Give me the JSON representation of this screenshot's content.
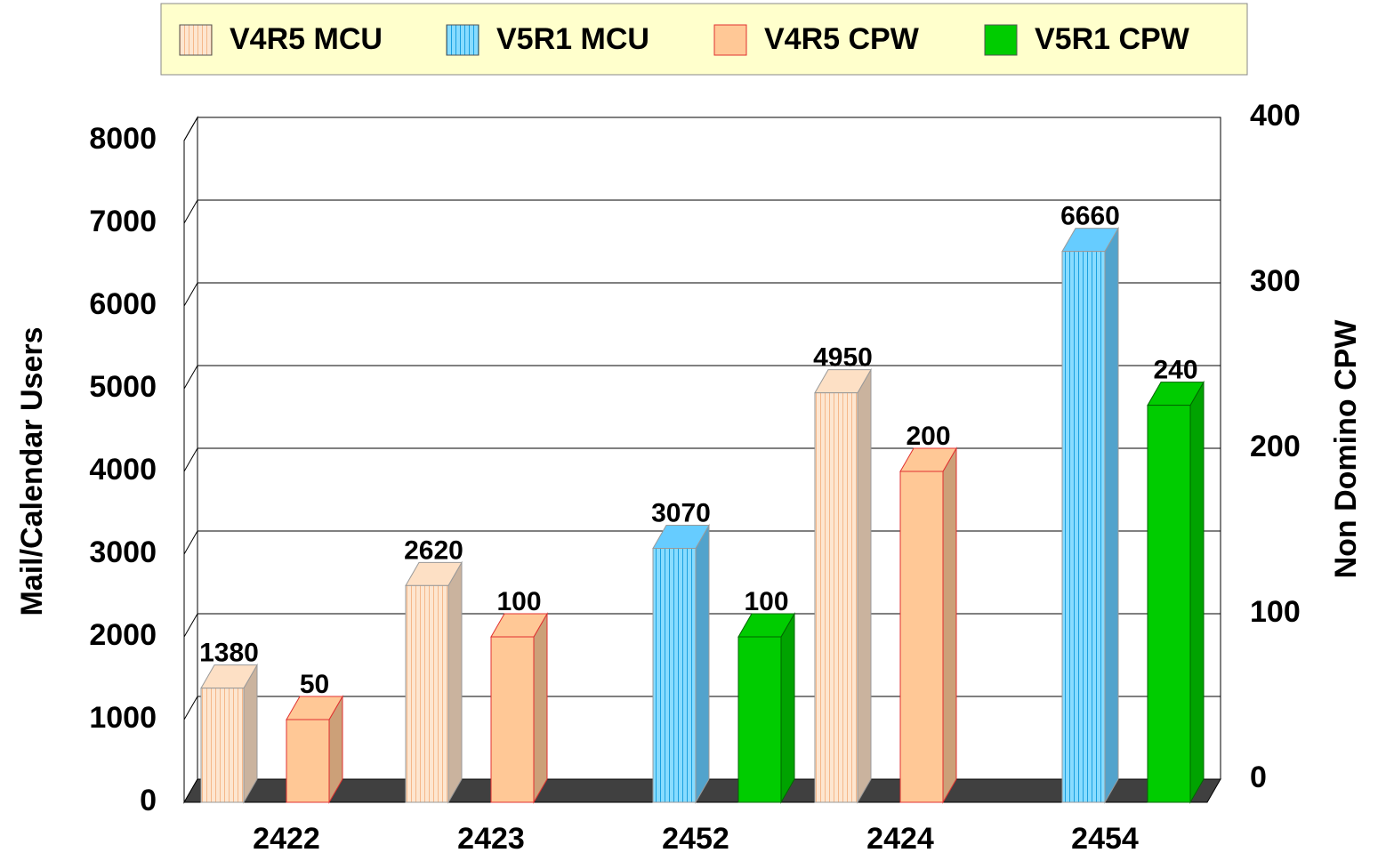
{
  "chart_data": {
    "type": "bar3d",
    "categories": [
      "2422",
      "2423",
      "2452",
      "2424",
      "2454"
    ],
    "series": [
      {
        "name": "V4R5 MCU",
        "color": "#fde0c5",
        "values": [
          1380,
          2620,
          null,
          4950,
          null
        ]
      },
      {
        "name": "V5R1 MCU",
        "color": "#66ccff",
        "values": [
          null,
          null,
          3070,
          null,
          6660
        ]
      },
      {
        "name": "V4R5 CPW",
        "color": "#ffc896",
        "axis": "y2",
        "values": [
          50,
          100,
          null,
          200,
          null
        ]
      },
      {
        "name": "V5R1 CPW",
        "color": "#00cc00",
        "axis": "y2",
        "values": [
          null,
          null,
          100,
          null,
          240
        ]
      }
    ],
    "ylabel": "Mail/Calendar Users",
    "y2label": "Non Domino CPW",
    "ylim": [
      0,
      8000
    ],
    "yticks": [
      0,
      1000,
      2000,
      3000,
      4000,
      5000,
      6000,
      7000,
      8000
    ],
    "y2lim": [
      0,
      400
    ],
    "y2ticks": [
      0,
      100,
      200,
      300,
      400
    ],
    "grid": true,
    "legend": "top"
  }
}
